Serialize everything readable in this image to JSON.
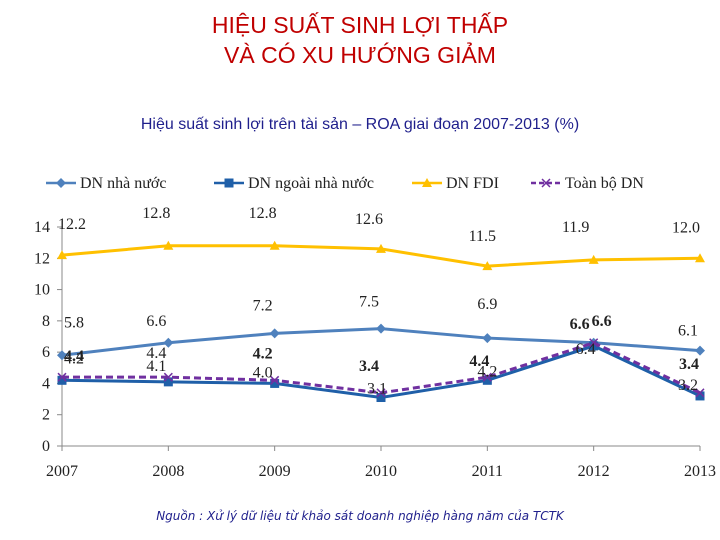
{
  "title_line1": "HIỆU SUẤT SINH LỢI THẤP",
  "title_line2": "VÀ CÓ XU HƯỚNG GIẢM",
  "source": "Nguồn : Xử lý dữ liệu từ khảo sát doanh nghiệp hàng năm của TCTK",
  "colors": {
    "title": "#c00000",
    "text_blue": "#1f1f8c"
  },
  "chart_data": {
    "type": "line",
    "title": "Hiệu suất sinh lợi trên tài sản – ROA giai đoạn 2007-2013 (%)",
    "xlabel": "",
    "ylabel": "",
    "ylim": [
      0,
      14
    ],
    "yticks": [
      0,
      2,
      4,
      6,
      8,
      10,
      12,
      14
    ],
    "categories": [
      "2007",
      "2008",
      "2009",
      "2010",
      "2011",
      "2012",
      "2013"
    ],
    "legend_position": "top",
    "series": [
      {
        "name": "DN nhà nước",
        "color": "#4f81bd",
        "marker": "diamond",
        "values": [
          5.8,
          6.6,
          7.2,
          7.5,
          6.9,
          6.6,
          6.1
        ],
        "labels": [
          "5.8",
          "6.6",
          "7.2",
          "7.5",
          "6.9",
          "6.6",
          "6.1"
        ]
      },
      {
        "name": "DN ngoài nhà nước",
        "color": "#1f5fa8",
        "marker": "square",
        "values": [
          4.2,
          4.1,
          4.0,
          3.1,
          4.2,
          6.4,
          3.2
        ],
        "labels": [
          "4.2",
          "4.1",
          "4.0",
          "3.1",
          "4.2",
          "6.4",
          "3.2"
        ]
      },
      {
        "name": "DN FDI",
        "color": "#ffc000",
        "marker": "triangle",
        "values": [
          12.2,
          12.8,
          12.8,
          12.6,
          11.5,
          11.9,
          12.0
        ],
        "labels": [
          "12.2",
          "12.8",
          "12.8",
          "12.6",
          "11.5",
          "11.9",
          "12.0"
        ]
      },
      {
        "name": "Toàn bộ DN",
        "color": "#7030a0",
        "marker": "x",
        "dashed": true,
        "values": [
          4.4,
          4.4,
          4.2,
          3.4,
          4.4,
          6.6,
          3.4
        ],
        "labels": [
          "4.4",
          "4.4",
          "4.2",
          "3.4",
          "4.4",
          "6.6",
          "3.4"
        ]
      }
    ]
  }
}
